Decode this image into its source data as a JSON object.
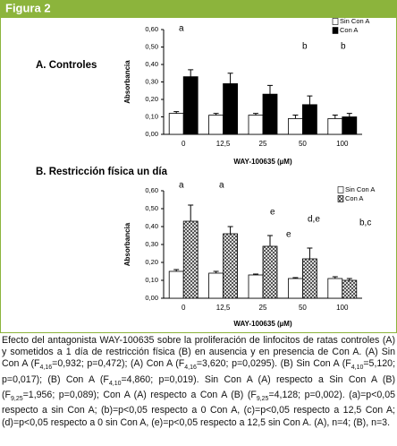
{
  "figure_label": "Figura 2",
  "chart_data": [
    {
      "type": "bar",
      "title": "A. Controles",
      "x_label": "WAY-100635 (µM)",
      "y_label": "Absorbancia",
      "categories": [
        "0",
        "12,5",
        "25",
        "50",
        "100"
      ],
      "series": [
        {
          "name": "Sin Con A",
          "color": "#ffffff",
          "values": [
            0.12,
            0.11,
            0.11,
            0.09,
            0.09
          ],
          "errors": [
            0.01,
            0.01,
            0.01,
            0.02,
            0.02
          ]
        },
        {
          "name": "Con A",
          "color": "#000000",
          "values": [
            0.33,
            0.29,
            0.23,
            0.17,
            0.1
          ],
          "errors": [
            0.04,
            0.06,
            0.05,
            0.05,
            0.02
          ]
        }
      ],
      "ylim": [
        0,
        0.6
      ],
      "yticks": [
        {
          "value": 0,
          "label": "0,00"
        },
        {
          "value": 0.1,
          "label": "0,10"
        },
        {
          "value": 0.2,
          "label": "0,20"
        },
        {
          "value": 0.3,
          "label": "0,30"
        },
        {
          "value": 0.4,
          "label": "0,40"
        },
        {
          "value": 0.5,
          "label": "0,50"
        },
        {
          "value": 0.6,
          "label": "0,60"
        }
      ],
      "annotations": [
        "a",
        "b",
        "b"
      ]
    },
    {
      "type": "bar",
      "title": "B. Restricción física un día",
      "x_label": "WAY-100635 (µM)",
      "y_label": "Absorbancia",
      "categories": [
        "0",
        "12,5",
        "25",
        "50",
        "100"
      ],
      "series": [
        {
          "name": "Sin Con A",
          "color": "#ffffff",
          "values": [
            0.15,
            0.14,
            0.13,
            0.11,
            0.11
          ],
          "errors": [
            0.01,
            0.01,
            0.005,
            0.005,
            0.01
          ]
        },
        {
          "name": "Con A",
          "color": "#000000",
          "fill_pattern": "hatch",
          "values": [
            0.43,
            0.36,
            0.29,
            0.22,
            0.1
          ],
          "errors": [
            0.09,
            0.04,
            0.06,
            0.06,
            0.01
          ]
        }
      ],
      "ylim": [
        0,
        0.6
      ],
      "yticks": [
        {
          "value": 0,
          "label": "0,00"
        },
        {
          "value": 0.1,
          "label": "0,10"
        },
        {
          "value": 0.2,
          "label": "0,20"
        },
        {
          "value": 0.3,
          "label": "0,30"
        },
        {
          "value": 0.4,
          "label": "0,40"
        },
        {
          "value": 0.5,
          "label": "0,50"
        },
        {
          "value": 0.6,
          "label": "0,60"
        }
      ],
      "annotations": [
        "a",
        "a",
        "e",
        "e",
        "d,e",
        "b,c"
      ]
    }
  ],
  "caption": [
    "Efecto del antagonista WAY-100635 sobre la proliferación de linfocitos de ratas controles (A) y sometidos a 1 día de restricción física (B) en ausencia y en presencia de Con A. (A) Sin Con A (F",
    "4,16",
    "=0,932; p=0,472); (A) Con A (F",
    "4,16",
    "=3,620; p=0,0295). (B) Sin Con A (F",
    "4,10",
    "=5,120; p=0,017); (B) Con A (F",
    "4,10",
    "=4,860; p=0,019). Sin Con A (A) respecto a Sin Con A (B) (F",
    "9,25",
    "=1,956; p=0,089); Con A (A) respecto a Con A (B) (F",
    "9,25",
    "=4,128; p=0,002). (a)=p<0,05 respecto a sin Con A; (b)=p<0,05 respecto a 0 Con A, (c)=p<0,05 respecto a 12,5 Con A; (d)=p<0,05 respecto a 0 sin Con A, (e)=p<0,05 respecto a 12,5 sin Con A. (A), n=4; (B), n=3."
  ]
}
